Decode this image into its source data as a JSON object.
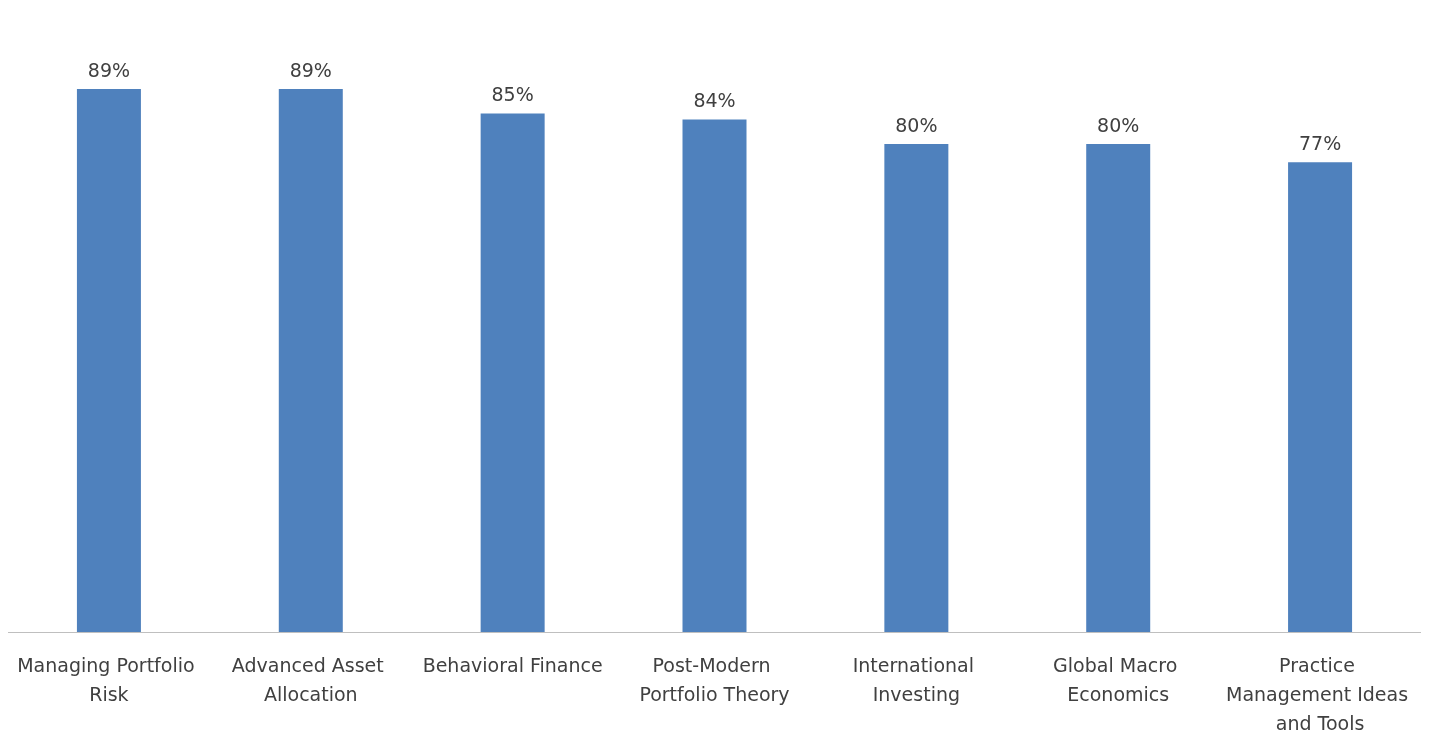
{
  "chart_data": {
    "type": "bar",
    "categories": [
      "Managing Portfolio Risk",
      "Advanced Asset Allocation",
      "Behavioral Finance",
      "Post-Modern Portfolio Theory",
      "International Investing",
      "Global Macro Economics",
      "Practice Management Ideas and Tools"
    ],
    "values": [
      89,
      89,
      85,
      84,
      80,
      80,
      77
    ],
    "value_labels": [
      "89%",
      "89%",
      "85%",
      "84%",
      "80%",
      "80%",
      "77%"
    ],
    "color": "#4f81bd",
    "tick_labels": "x"
  }
}
